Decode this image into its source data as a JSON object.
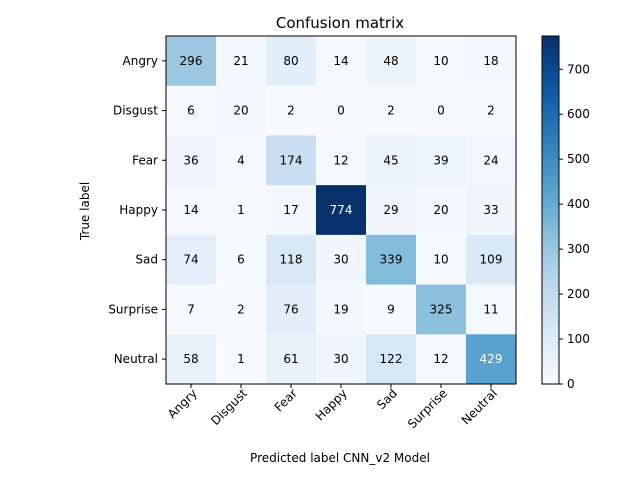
{
  "chart_data": {
    "type": "heatmap",
    "title": "Confusion matrix",
    "xlabel": "Predicted label CNN_v2 Model",
    "ylabel": "True label",
    "x_categories": [
      "Angry",
      "Disgust",
      "Fear",
      "Happy",
      "Sad",
      "Surprise",
      "Neutral"
    ],
    "y_categories": [
      "Angry",
      "Disgust",
      "Fear",
      "Happy",
      "Sad",
      "Surprise",
      "Neutral"
    ],
    "values": [
      [
        296,
        21,
        80,
        14,
        48,
        10,
        18
      ],
      [
        6,
        20,
        2,
        0,
        2,
        0,
        2
      ],
      [
        36,
        4,
        174,
        12,
        45,
        39,
        24
      ],
      [
        14,
        1,
        17,
        774,
        29,
        20,
        33
      ],
      [
        74,
        6,
        118,
        30,
        339,
        10,
        109
      ],
      [
        7,
        2,
        76,
        19,
        9,
        325,
        11
      ],
      [
        58,
        1,
        61,
        30,
        122,
        12,
        429
      ]
    ],
    "colormap": "Blues",
    "colorbar": {
      "min": 0,
      "max": 774,
      "ticks": [
        0,
        100,
        200,
        300,
        400,
        500,
        600,
        700
      ]
    }
  }
}
